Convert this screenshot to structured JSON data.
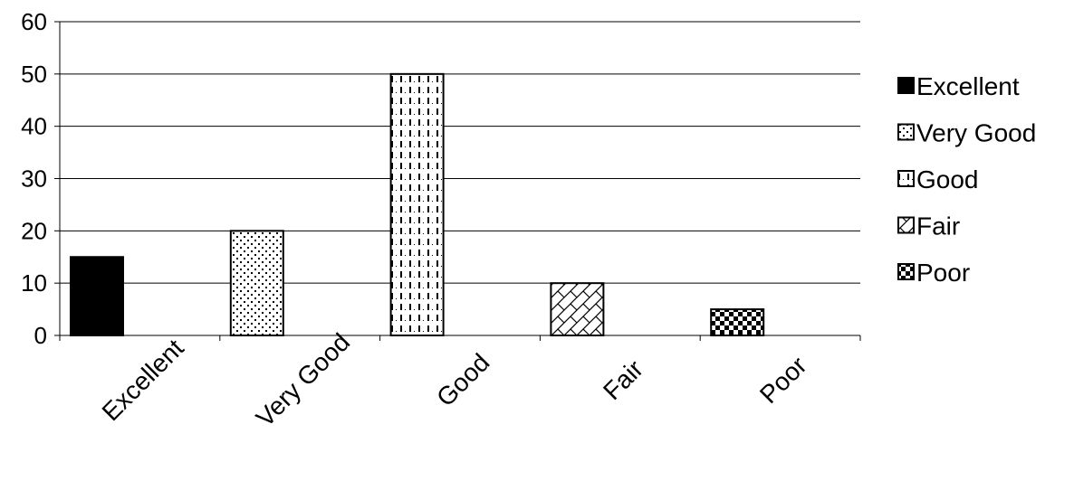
{
  "chart_data": {
    "type": "bar",
    "title": "",
    "xlabel": "",
    "ylabel": "",
    "categories": [
      "Excellent",
      "Very Good",
      "Good",
      "Fair",
      "Poor"
    ],
    "values": [
      15,
      20,
      50,
      10,
      5
    ],
    "ylim": [
      0,
      60
    ],
    "yticks": [
      "0",
      "10",
      "20",
      "30",
      "40",
      "50",
      "60"
    ],
    "grid": true,
    "legend_position": "right",
    "legend": [
      "Excellent",
      "Very Good",
      "Good",
      "Fair",
      "Poor"
    ],
    "patterns": [
      "solid",
      "dots",
      "dashed-vertical",
      "brick",
      "checker"
    ],
    "colors": {
      "ink": "#000000",
      "background": "#ffffff",
      "grid": "#000000"
    }
  }
}
